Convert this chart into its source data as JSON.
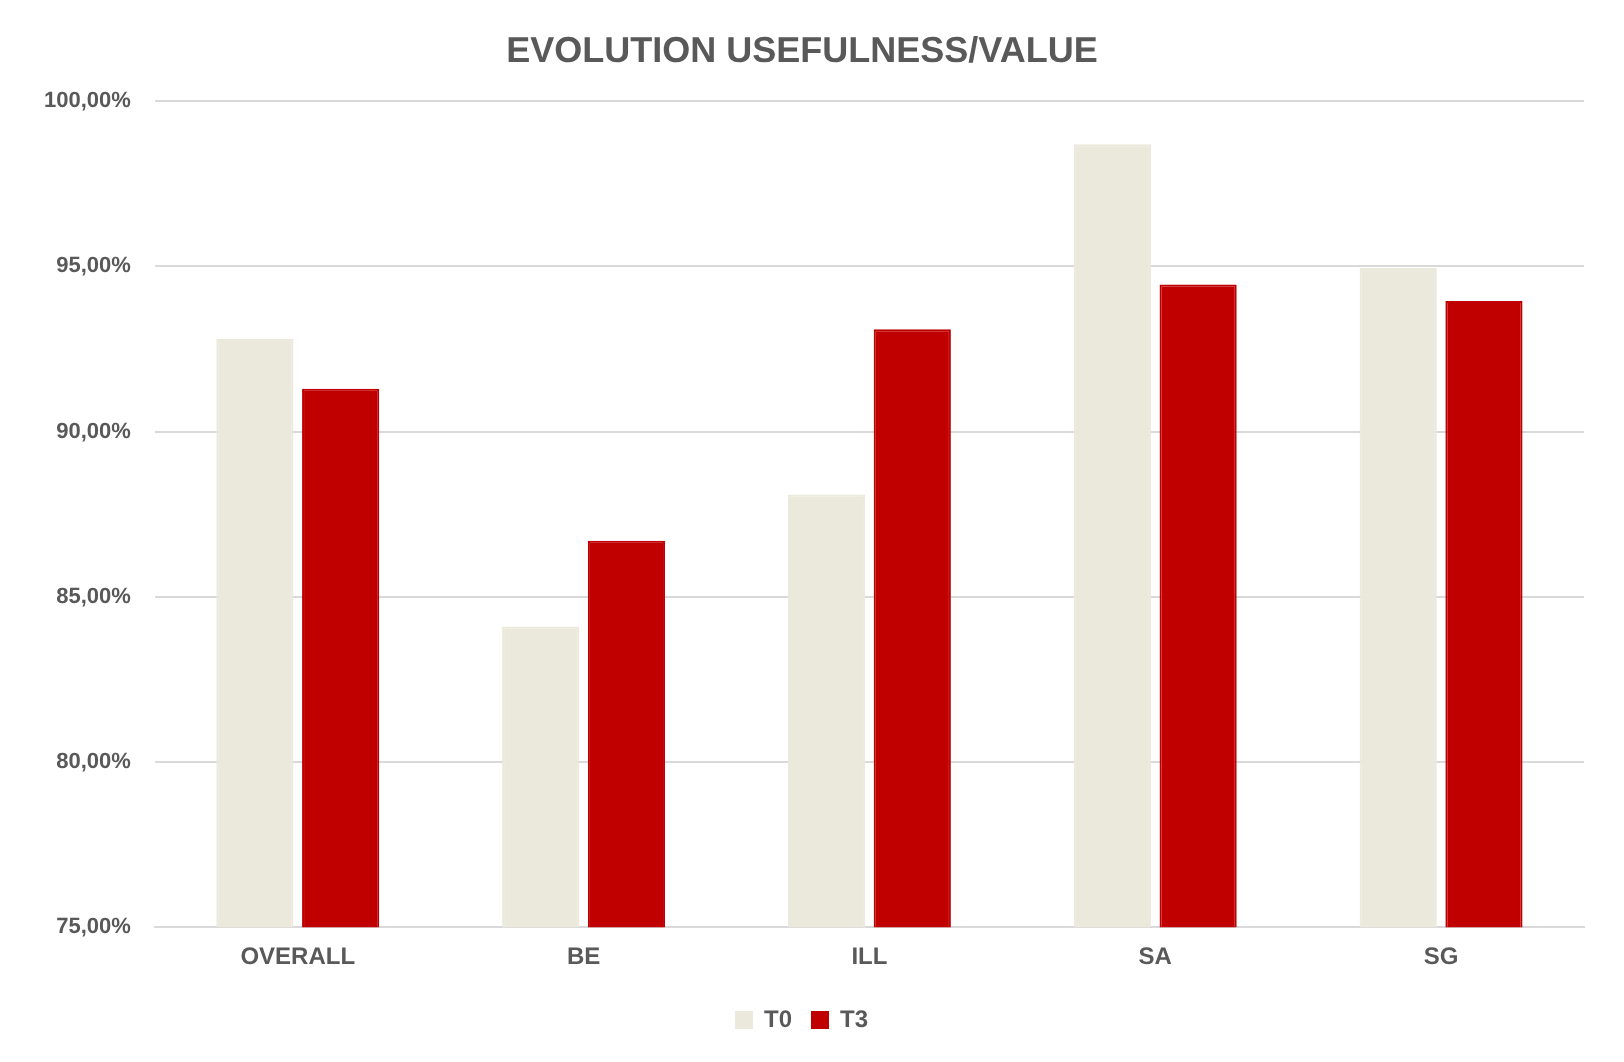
{
  "chart_data": {
    "type": "bar",
    "title": "EVOLUTION USEFULNESS/VALUE",
    "categories": [
      "OVERALL",
      "BE",
      "ILL",
      "SA",
      "SG"
    ],
    "series": [
      {
        "name": "T0",
        "color": "#ebe9dc",
        "values": [
          92.8,
          84.1,
          88.1,
          98.7,
          94.95
        ]
      },
      {
        "name": "T3",
        "color": "#c00000",
        "values": [
          91.3,
          86.7,
          93.1,
          94.45,
          93.95
        ]
      }
    ],
    "ylim": [
      75,
      100
    ],
    "yticks": [
      {
        "value": 75,
        "label": "75,00%"
      },
      {
        "value": 80,
        "label": "80,00%"
      },
      {
        "value": 85,
        "label": "85,00%"
      },
      {
        "value": 90,
        "label": "90,00%"
      },
      {
        "value": 95,
        "label": "95,00%"
      },
      {
        "value": 100,
        "label": "100,00%"
      }
    ],
    "grid": "y",
    "legend": "bottom"
  }
}
